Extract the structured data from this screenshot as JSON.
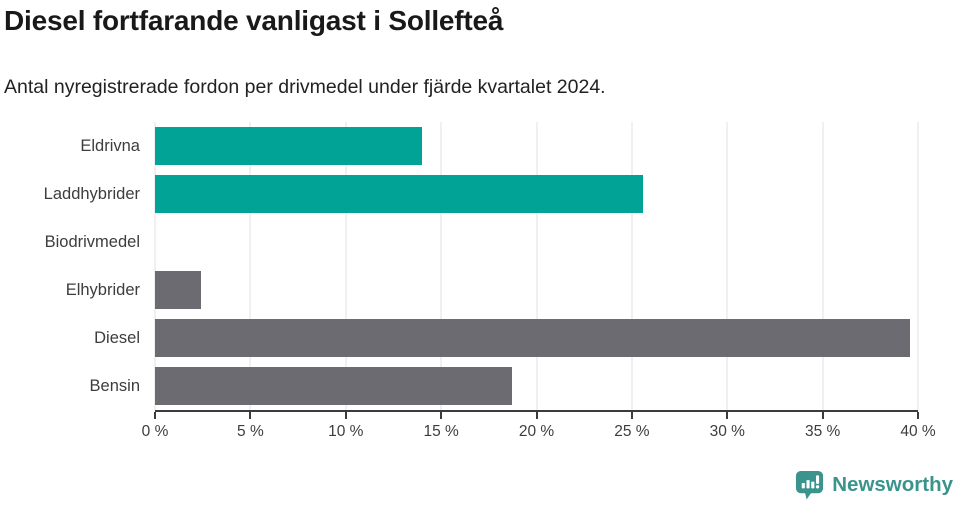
{
  "title": "Diesel fortfarande vanligast i Sollefteå",
  "subtitle": "Antal nyregistrerade fordon per drivmedel under fjärde kvartalet 2024.",
  "colors": {
    "electric_bar": "#00a396",
    "fossil_bar": "#6c6b72",
    "gridline": "#e2e2e2",
    "axis": "#3b3b3b",
    "label_text": "#3d3d3d",
    "title_text": "#191919",
    "brand_teal": "#3a948d"
  },
  "chart_data": {
    "type": "bar",
    "orientation": "horizontal",
    "title": "Diesel fortfarande vanligast i Sollefteå",
    "subtitle": "Antal nyregistrerade fordon per drivmedel under fjärde kvartalet 2024.",
    "categories": [
      "Eldrivna",
      "Laddhybrider",
      "Biodrivmedel",
      "Elhybrider",
      "Diesel",
      "Bensin"
    ],
    "values": [
      14.0,
      25.6,
      0,
      2.4,
      39.6,
      18.7
    ],
    "bar_colors": [
      "#00a396",
      "#00a396",
      "#6c6b72",
      "#6c6b72",
      "#6c6b72",
      "#6c6b72"
    ],
    "xlabel": "",
    "ylabel": "",
    "xlim": [
      0,
      40
    ],
    "xticks": [
      0,
      5,
      10,
      15,
      20,
      25,
      30,
      35,
      40
    ],
    "xtick_labels": [
      "0 %",
      "5 %",
      "10 %",
      "15 %",
      "20 %",
      "25 %",
      "30 %",
      "35 %",
      "40 %"
    ],
    "grid": true,
    "legend": false
  },
  "footer": {
    "brand_label": "Newsworthy"
  }
}
